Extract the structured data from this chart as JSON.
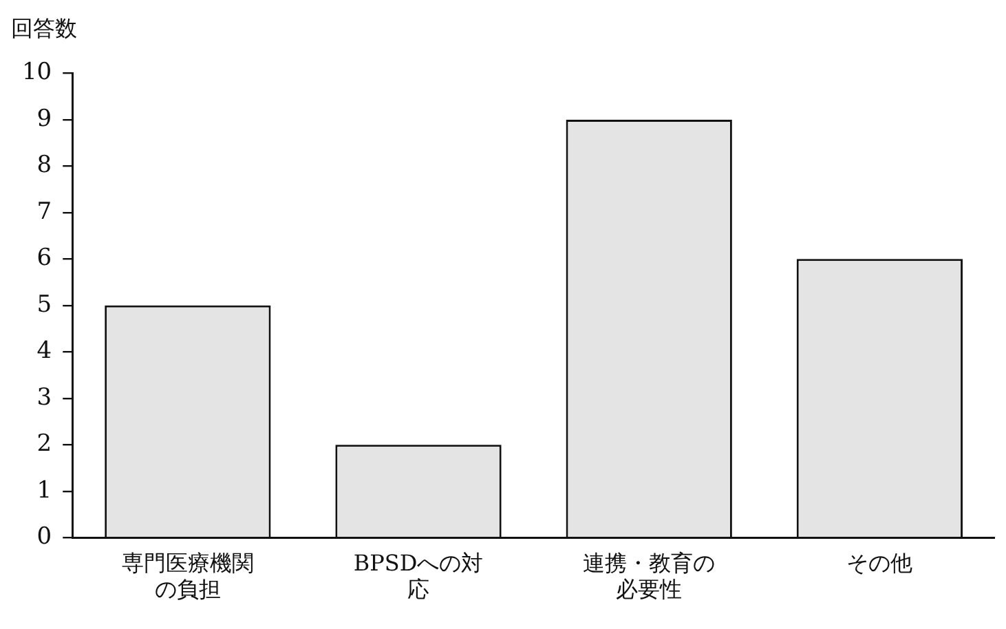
{
  "chart_data": {
    "type": "bar",
    "ylabel": "回答数",
    "categories": [
      "専門医療機関の負担",
      "BPSDへの対応",
      "連携・教育の必要性",
      "その他"
    ],
    "values": [
      5,
      2,
      9,
      6
    ],
    "color": "#e4e4e4",
    "ylim": [
      0,
      10
    ],
    "yticks": [
      0,
      1,
      2,
      3,
      4,
      5,
      6,
      7,
      8,
      9,
      10
    ],
    "grid": false,
    "legend": false
  }
}
